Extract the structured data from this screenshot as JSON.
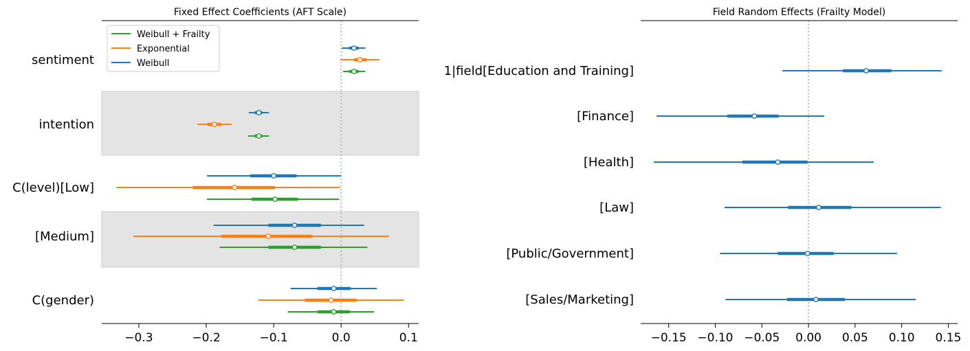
{
  "colors": {
    "weibull": "#1f77b4",
    "exponential": "#ff7f0e",
    "weibull_frailty": "#2ca02c",
    "band": "#e4e4e4",
    "band_edge": "#cccccc",
    "ref_line": "#aaaaaa"
  },
  "chart_data": [
    {
      "type": "forest",
      "title": "Fixed Effect Coefficients (AFT Scale)",
      "xlim": [
        -0.355,
        0.115
      ],
      "xticks": [
        -0.3,
        -0.2,
        -0.1,
        0.0,
        0.1
      ],
      "xtick_labels": [
        "−0.3",
        "−0.2",
        "−0.1",
        "0.0",
        "0.1"
      ],
      "reference_x": 0,
      "legend": {
        "placement": "top-left",
        "entries": [
          {
            "label": "Weibull + Frailty",
            "color_key": "weibull_frailty"
          },
          {
            "label": "Exponential",
            "color_key": "exponential"
          },
          {
            "label": "Weibull",
            "color_key": "weibull"
          }
        ]
      },
      "groups": [
        {
          "label": "sentiment",
          "shaded": false,
          "rows": [
            {
              "model": "Weibull",
              "mean": 0.019,
              "hdi_inner": [
                0.012,
                0.026
              ],
              "hdi_outer": [
                0.001,
                0.036
              ]
            },
            {
              "model": "Exponential",
              "mean": 0.028,
              "hdi_inner": [
                0.019,
                0.038
              ],
              "hdi_outer": [
                -0.001,
                0.057
              ]
            },
            {
              "model": "Weibull + Frailty",
              "mean": 0.019,
              "hdi_inner": [
                0.012,
                0.026
              ],
              "hdi_outer": [
                0.003,
                0.036
              ]
            }
          ]
        },
        {
          "label": "intention",
          "shaded": true,
          "rows": [
            {
              "model": "Weibull",
              "mean": -0.122,
              "hdi_inner": [
                -0.128,
                -0.117
              ],
              "hdi_outer": [
                -0.137,
                -0.107
              ]
            },
            {
              "model": "Exponential",
              "mean": -0.188,
              "hdi_inner": [
                -0.198,
                -0.178
              ],
              "hdi_outer": [
                -0.213,
                -0.162
              ]
            },
            {
              "model": "Weibull + Frailty",
              "mean": -0.122,
              "hdi_inner": [
                -0.128,
                -0.117
              ],
              "hdi_outer": [
                -0.138,
                -0.107
              ]
            }
          ]
        },
        {
          "label": "C(level)[Low]",
          "shaded": false,
          "rows": [
            {
              "model": "Weibull",
              "mean": -0.1,
              "hdi_inner": [
                -0.135,
                -0.066
              ],
              "hdi_outer": [
                -0.199,
                0.0
              ]
            },
            {
              "model": "Exponential",
              "mean": -0.158,
              "hdi_inner": [
                -0.22,
                -0.098
              ],
              "hdi_outer": [
                -0.333,
                -0.002
              ]
            },
            {
              "model": "Weibull + Frailty",
              "mean": -0.098,
              "hdi_inner": [
                -0.133,
                -0.064
              ],
              "hdi_outer": [
                -0.199,
                -0.003
              ]
            }
          ]
        },
        {
          "label": "[Medium]",
          "shaded": true,
          "rows": [
            {
              "model": "Weibull",
              "mean": -0.069,
              "hdi_inner": [
                -0.108,
                -0.03
              ],
              "hdi_outer": [
                -0.189,
                0.034
              ]
            },
            {
              "model": "Exponential",
              "mean": -0.108,
              "hdi_inner": [
                -0.178,
                -0.043
              ],
              "hdi_outer": [
                -0.308,
                0.071
              ]
            },
            {
              "model": "Weibull + Frailty",
              "mean": -0.069,
              "hdi_inner": [
                -0.108,
                -0.03
              ],
              "hdi_outer": [
                -0.18,
                0.039
              ]
            }
          ]
        },
        {
          "label": "C(gender)",
          "shaded": false,
          "rows": [
            {
              "model": "Weibull",
              "mean": -0.011,
              "hdi_inner": [
                -0.035,
                0.014
              ],
              "hdi_outer": [
                -0.075,
                0.053
              ]
            },
            {
              "model": "Exponential",
              "mean": -0.015,
              "hdi_inner": [
                -0.054,
                0.023
              ],
              "hdi_outer": [
                -0.123,
                0.093
              ]
            },
            {
              "model": "Weibull + Frailty",
              "mean": -0.011,
              "hdi_inner": [
                -0.035,
                0.013
              ],
              "hdi_outer": [
                -0.079,
                0.049
              ]
            }
          ]
        }
      ]
    },
    {
      "type": "forest",
      "title": "Field Random Effects (Frailty Model)",
      "xlim": [
        -0.18,
        0.16
      ],
      "xticks": [
        -0.15,
        -0.1,
        -0.05,
        0.0,
        0.05,
        0.1,
        0.15
      ],
      "xtick_labels": [
        "−0.15",
        "−0.10",
        "−0.05",
        "0.00",
        "0.05",
        "0.10",
        "0.15"
      ],
      "reference_x": 0,
      "groups": [
        {
          "label": "1|field[Education and Training]",
          "rows": [
            {
              "mean": 0.062,
              "hdi_inner": [
                0.037,
                0.089
              ],
              "hdi_outer": [
                -0.028,
                0.143
              ]
            }
          ]
        },
        {
          "label": "[Finance]",
          "rows": [
            {
              "mean": -0.058,
              "hdi_inner": [
                -0.087,
                -0.032
              ],
              "hdi_outer": [
                -0.163,
                0.017
              ]
            }
          ]
        },
        {
          "label": "[Health]",
          "rows": [
            {
              "mean": -0.033,
              "hdi_inner": [
                -0.071,
                -0.001
              ],
              "hdi_outer": [
                -0.166,
                0.07
              ]
            }
          ]
        },
        {
          "label": "[Law]",
          "rows": [
            {
              "mean": 0.011,
              "hdi_inner": [
                -0.022,
                0.046
              ],
              "hdi_outer": [
                -0.09,
                0.142
              ]
            }
          ]
        },
        {
          "label": "[Public/Government]",
          "rows": [
            {
              "mean": -0.001,
              "hdi_inner": [
                -0.033,
                0.027
              ],
              "hdi_outer": [
                -0.095,
                0.095
              ]
            }
          ]
        },
        {
          "label": "[Sales/Marketing]",
          "rows": [
            {
              "mean": 0.008,
              "hdi_inner": [
                -0.023,
                0.039
              ],
              "hdi_outer": [
                -0.089,
                0.115
              ]
            }
          ]
        }
      ]
    }
  ]
}
